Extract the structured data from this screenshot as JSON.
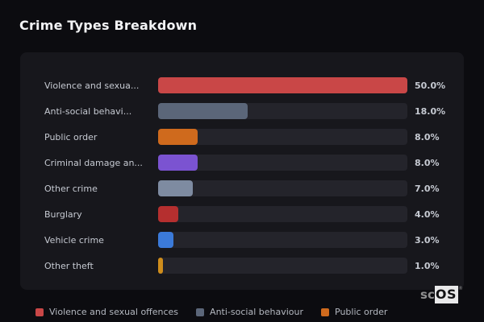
{
  "title": "Crime Types Breakdown",
  "colors": {
    "page_bg": "#0c0c10",
    "panel_bg": "#17171c",
    "track_bg": "#24242b",
    "title_text": "#f2f3f5",
    "label_text": "#c6cad2",
    "legend_text": "#b4b8c0"
  },
  "chart_data": {
    "type": "bar",
    "orientation": "horizontal",
    "title": "Crime Types Breakdown",
    "categories": [
      "Violence and sexua...",
      "Anti-social behavi...",
      "Public order",
      "Criminal damage an...",
      "Other crime",
      "Burglary",
      "Vehicle crime",
      "Other theft"
    ],
    "values": [
      50.0,
      18.0,
      8.0,
      8.0,
      7.0,
      4.0,
      3.0,
      1.0
    ],
    "value_labels": [
      "50.0%",
      "18.0%",
      "8.0%",
      "8.0%",
      "7.0%",
      "4.0%",
      "3.0%",
      "1.0%"
    ],
    "bar_colors": [
      "#c94747",
      "#5b6679",
      "#cf6a1d",
      "#7b53d1",
      "#7e8ba1",
      "#b52f2f",
      "#3b7ad9",
      "#cf8d1c"
    ],
    "xlim": [
      0,
      50
    ],
    "grid": false,
    "legend_position": "bottom",
    "legend": [
      {
        "label": "Violence and sexual offences",
        "color": "#c94747"
      },
      {
        "label": "Anti-social behaviour",
        "color": "#5b6679"
      },
      {
        "label": "Public order",
        "color": "#cf6a1d"
      }
    ]
  },
  "watermark": {
    "prefix": "sc",
    "suffix": "OS",
    "registered": "®"
  }
}
